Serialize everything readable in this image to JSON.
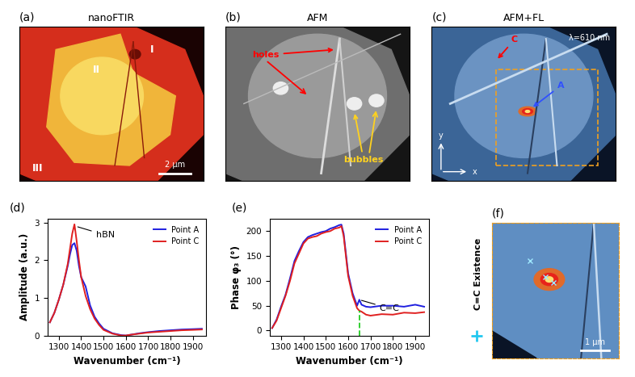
{
  "chart_data": [
    {
      "type": "line",
      "panel": "(d)",
      "xlabel": "Wavenumber (cm⁻¹)",
      "ylabel": "Amplitude (a.u.)",
      "xlim": [
        1250,
        1960
      ],
      "xticks": [
        1300,
        1400,
        1500,
        1600,
        1700,
        1800,
        1900
      ],
      "ylim": [
        0,
        3.1
      ],
      "yticks": [
        0,
        1,
        2,
        3
      ],
      "legend": "upper right",
      "x": [
        1260,
        1280,
        1300,
        1320,
        1340,
        1350,
        1360,
        1370,
        1380,
        1390,
        1400,
        1420,
        1440,
        1460,
        1480,
        1500,
        1540,
        1580,
        1600,
        1620,
        1660,
        1700,
        1750,
        1800,
        1850,
        1900,
        1940
      ],
      "series": [
        {
          "name": "Point A",
          "color": "#1f1fe0",
          "values": [
            0.35,
            0.6,
            0.95,
            1.35,
            1.85,
            2.15,
            2.4,
            2.45,
            2.25,
            1.85,
            1.55,
            1.3,
            0.8,
            0.5,
            0.32,
            0.18,
            0.06,
            0.01,
            0.0,
            0.02,
            0.06,
            0.09,
            0.12,
            0.14,
            0.16,
            0.17,
            0.18
          ]
        },
        {
          "name": "Point C",
          "color": "#e02020",
          "values": [
            0.35,
            0.6,
            0.95,
            1.35,
            1.9,
            2.3,
            2.7,
            2.95,
            2.5,
            2.0,
            1.55,
            1.05,
            0.7,
            0.45,
            0.28,
            0.15,
            0.05,
            0.0,
            0.0,
            0.02,
            0.05,
            0.08,
            0.1,
            0.12,
            0.14,
            0.15,
            0.16
          ]
        }
      ],
      "annotations": [
        {
          "text": "hBN",
          "x": 1375,
          "y": 2.9
        }
      ]
    },
    {
      "type": "line",
      "panel": "(e)",
      "xlabel": "Wavenumber (cm⁻¹)",
      "ylabel": "Phase φ₃ (°)",
      "xlim": [
        1250,
        1960
      ],
      "xticks": [
        1300,
        1400,
        1500,
        1600,
        1700,
        1800,
        1900
      ],
      "ylim": [
        -10,
        225
      ],
      "yticks": [
        0,
        50,
        100,
        150,
        200
      ],
      "legend": "upper right",
      "x": [
        1260,
        1280,
        1300,
        1320,
        1340,
        1360,
        1380,
        1400,
        1420,
        1440,
        1460,
        1480,
        1500,
        1520,
        1540,
        1560,
        1570,
        1580,
        1600,
        1620,
        1640,
        1650,
        1660,
        1680,
        1700,
        1750,
        1800,
        1850,
        1900,
        1940
      ],
      "series": [
        {
          "name": "Point A",
          "color": "#1f1fe0",
          "values": [
            5,
            22,
            48,
            72,
            105,
            140,
            160,
            178,
            188,
            192,
            195,
            198,
            200,
            205,
            208,
            212,
            213,
            195,
            115,
            75,
            50,
            62,
            52,
            48,
            47,
            50,
            50,
            48,
            52,
            48
          ]
        },
        {
          "name": "Point C",
          "color": "#e02020",
          "values": [
            5,
            20,
            45,
            70,
            100,
            135,
            155,
            175,
            185,
            188,
            190,
            195,
            198,
            200,
            205,
            207,
            210,
            190,
            110,
            70,
            45,
            40,
            38,
            32,
            30,
            33,
            32,
            36,
            35,
            37
          ]
        }
      ],
      "annotations": [
        {
          "text": "C=C",
          "x": 1650,
          "y": 62
        }
      ],
      "marker_line": {
        "x": 1650,
        "y": [
          -10,
          40
        ],
        "color": "#22cc22",
        "line_style": "dashed"
      }
    }
  ],
  "images": [
    {
      "panel": "(a)",
      "title": "nanoFTIR",
      "labels": [
        "I",
        "II",
        "III"
      ],
      "scale_bar": "2 µm"
    },
    {
      "panel": "(b)",
      "title": "AFM",
      "annotations": [
        "holes",
        "bubbles"
      ]
    },
    {
      "panel": "(c)",
      "title": "AFM+FL",
      "subtitle": "λ=610 nm",
      "annotations": [
        "C",
        "A"
      ],
      "axis_labels": [
        "x",
        "y"
      ]
    },
    {
      "panel": "(f)",
      "ylabel": "C=C Existence",
      "scale_bar": "1 µm"
    }
  ]
}
